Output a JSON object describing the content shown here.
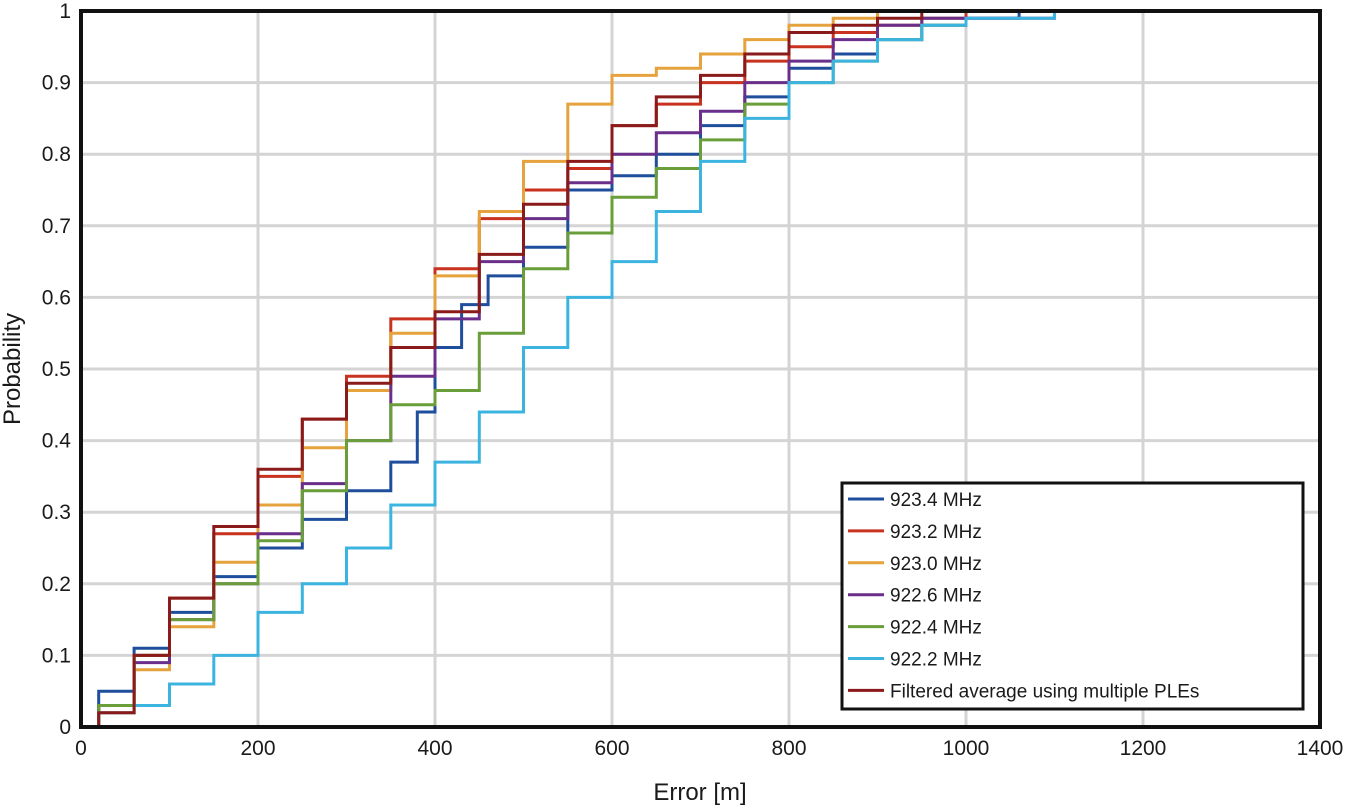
{
  "chart_data": {
    "type": "line",
    "title": "",
    "xlabel": "Error [m]",
    "ylabel": "Probability",
    "xlim": [
      0,
      1400
    ],
    "ylim": [
      0,
      1
    ],
    "xticks": [
      0,
      200,
      400,
      600,
      800,
      1000,
      1200,
      1400
    ],
    "yticks": [
      0,
      0.1,
      0.2,
      0.3,
      0.4,
      0.5,
      0.6,
      0.7,
      0.8,
      0.9,
      1
    ],
    "xtick_labels": [
      "0",
      "200",
      "400",
      "600",
      "800",
      "1000",
      "1200",
      "1400"
    ],
    "ytick_labels": [
      "0",
      "0.1",
      "0.2",
      "0.3",
      "0.4",
      "0.5",
      "0.6",
      "0.7",
      "0.8",
      "0.9",
      "1"
    ],
    "grid": true,
    "legend_position": "bottom-right",
    "series": [
      {
        "name": "923.4 MHz",
        "color": "#1f4e9c",
        "x": [
          0,
          20,
          60,
          100,
          150,
          200,
          250,
          300,
          350,
          380,
          400,
          430,
          460,
          500,
          550,
          600,
          650,
          700,
          750,
          800,
          850,
          900,
          950,
          1000,
          1060
        ],
        "y": [
          0,
          0.05,
          0.11,
          0.16,
          0.21,
          0.25,
          0.29,
          0.33,
          0.37,
          0.44,
          0.53,
          0.59,
          0.63,
          0.67,
          0.75,
          0.77,
          0.8,
          0.84,
          0.88,
          0.92,
          0.94,
          0.96,
          0.98,
          0.99,
          1.0
        ]
      },
      {
        "name": "923.2 MHz",
        "color": "#c8321e",
        "x": [
          0,
          20,
          60,
          100,
          150,
          200,
          250,
          300,
          350,
          400,
          450,
          500,
          550,
          600,
          650,
          700,
          750,
          800,
          850,
          900,
          950,
          1000,
          1050
        ],
        "y": [
          0,
          0.03,
          0.1,
          0.18,
          0.27,
          0.35,
          0.43,
          0.49,
          0.57,
          0.64,
          0.71,
          0.75,
          0.78,
          0.84,
          0.87,
          0.9,
          0.93,
          0.95,
          0.97,
          0.98,
          0.99,
          1.0,
          1.0
        ]
      },
      {
        "name": "923.0 MHz",
        "color": "#e6a23c",
        "x": [
          0,
          20,
          60,
          100,
          150,
          200,
          250,
          300,
          350,
          400,
          450,
          500,
          550,
          600,
          650,
          700,
          750,
          800,
          850,
          900,
          950
        ],
        "y": [
          0,
          0.02,
          0.08,
          0.14,
          0.23,
          0.31,
          0.39,
          0.47,
          0.55,
          0.63,
          0.72,
          0.79,
          0.87,
          0.91,
          0.92,
          0.94,
          0.96,
          0.98,
          0.99,
          1.0,
          1.0
        ]
      },
      {
        "name": "922.6 MHz",
        "color": "#6a2f8a",
        "x": [
          0,
          20,
          60,
          100,
          150,
          200,
          250,
          300,
          350,
          400,
          450,
          500,
          550,
          600,
          650,
          700,
          750,
          800,
          850,
          900,
          950,
          1000,
          1100,
          1280
        ],
        "y": [
          0,
          0.03,
          0.09,
          0.15,
          0.2,
          0.27,
          0.34,
          0.4,
          0.49,
          0.57,
          0.65,
          0.71,
          0.76,
          0.8,
          0.83,
          0.86,
          0.9,
          0.93,
          0.96,
          0.98,
          0.99,
          0.99,
          1.0,
          1.0
        ]
      },
      {
        "name": "922.4 MHz",
        "color": "#6a9e3a",
        "x": [
          0,
          20,
          60,
          100,
          150,
          200,
          250,
          300,
          350,
          400,
          450,
          500,
          550,
          600,
          650,
          700,
          750,
          800,
          850,
          900,
          950,
          1000
        ],
        "y": [
          0,
          0.03,
          0.1,
          0.15,
          0.2,
          0.26,
          0.33,
          0.4,
          0.45,
          0.47,
          0.55,
          0.64,
          0.69,
          0.74,
          0.78,
          0.82,
          0.87,
          0.9,
          0.93,
          0.96,
          0.98,
          0.99
        ]
      },
      {
        "name": "922.2 MHz",
        "color": "#3cb4e0",
        "x": [
          0,
          20,
          60,
          100,
          150,
          200,
          250,
          300,
          350,
          400,
          450,
          500,
          550,
          600,
          650,
          700,
          750,
          800,
          850,
          900,
          950,
          1000,
          1100,
          1200
        ],
        "y": [
          0,
          0.02,
          0.03,
          0.06,
          0.1,
          0.16,
          0.2,
          0.25,
          0.31,
          0.37,
          0.44,
          0.53,
          0.6,
          0.65,
          0.72,
          0.79,
          0.85,
          0.9,
          0.93,
          0.96,
          0.98,
          0.99,
          1.0,
          1.0
        ]
      },
      {
        "name": "Filtered average using multiple PLEs",
        "color": "#8b1a1a",
        "x": [
          0,
          20,
          60,
          100,
          150,
          200,
          250,
          300,
          350,
          400,
          450,
          500,
          550,
          600,
          650,
          700,
          750,
          800,
          850,
          900,
          950,
          1000
        ],
        "y": [
          0,
          0.02,
          0.1,
          0.18,
          0.28,
          0.36,
          0.43,
          0.48,
          0.53,
          0.58,
          0.66,
          0.73,
          0.79,
          0.84,
          0.88,
          0.91,
          0.94,
          0.97,
          0.98,
          0.99,
          1.0,
          1.0
        ]
      }
    ]
  }
}
